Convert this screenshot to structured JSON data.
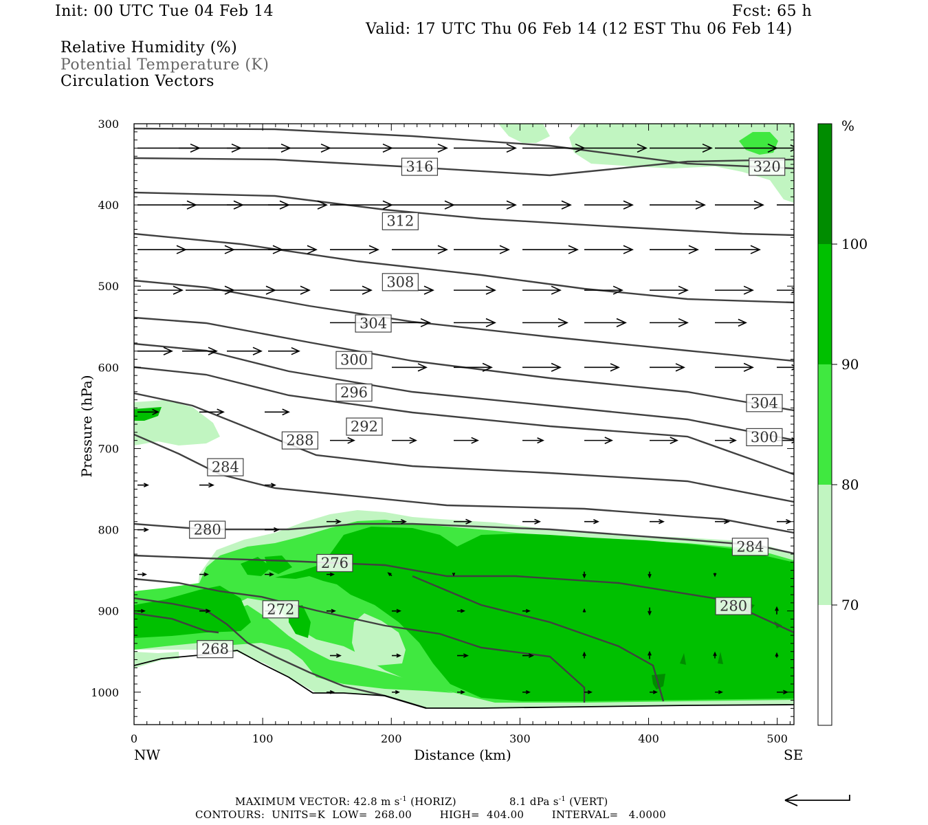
{
  "header": {
    "init": "Init: 00 UTC Tue 04 Feb 14",
    "fcst": "Fcst:   65 h",
    "valid": "Valid: 17 UTC Thu 06 Feb 14 (12 EST Thu 06 Feb 14)",
    "legend1": "Relative Humidity (%)",
    "legend2": "Potential Temperature (K)",
    "legend3": "Circulation Vectors"
  },
  "footer": {
    "line1_a": "MAXIMUM VECTOR:  42.8 m s",
    "line1_b": " (HORIZ)",
    "line1_c": "8.1 dPa s",
    "line1_d": " (VERT)",
    "sup": "-1",
    "line2": "CONTOURS:  UNITS=K  LOW=  268.00        HIGH=  404.00        INTERVAL=   4.0000"
  },
  "colors": {
    "rh70": "#c1f5c1",
    "rh80": "#40e840",
    "rh90": "#00c000",
    "rh100": "#008c00",
    "theta": "#404040"
  },
  "chart_data": {
    "type": "cross-section",
    "xlabel": "Distance (km)",
    "ylabel": "Pressure (hPa)",
    "xlim": [
      0,
      513
    ],
    "ylim": [
      1040,
      300
    ],
    "x_ticks": [
      0,
      100,
      200,
      300,
      400,
      500
    ],
    "y_ticks": [
      300,
      400,
      500,
      600,
      700,
      800,
      900,
      1000
    ],
    "x_end_labels": {
      "left": "NW",
      "right": "SE"
    },
    "colorbar": {
      "unit": "%",
      "levels": [
        70,
        80,
        90,
        100
      ]
    },
    "theta_labels": [
      {
        "text": "316",
        "x": 222,
        "p": 353
      },
      {
        "text": "320",
        "x": 492,
        "p": 353
      },
      {
        "text": "312",
        "x": 207,
        "p": 420
      },
      {
        "text": "308",
        "x": 207,
        "p": 495
      },
      {
        "text": "304",
        "x": 186,
        "p": 546
      },
      {
        "text": "300",
        "x": 171,
        "p": 591
      },
      {
        "text": "296",
        "x": 171,
        "p": 631
      },
      {
        "text": "292",
        "x": 179,
        "p": 673
      },
      {
        "text": "288",
        "x": 129,
        "p": 690
      },
      {
        "text": "284",
        "x": 71,
        "p": 723
      },
      {
        "text": "280",
        "x": 57,
        "p": 800
      },
      {
        "text": "276",
        "x": 156,
        "p": 841
      },
      {
        "text": "272",
        "x": 114,
        "p": 898
      },
      {
        "text": "268",
        "x": 63,
        "p": 947
      },
      {
        "text": "304",
        "x": 490,
        "p": 644
      },
      {
        "text": "300",
        "x": 490,
        "p": 686
      },
      {
        "text": "284",
        "x": 479,
        "p": 821
      },
      {
        "text": "280",
        "x": 466,
        "p": 894
      }
    ]
  }
}
